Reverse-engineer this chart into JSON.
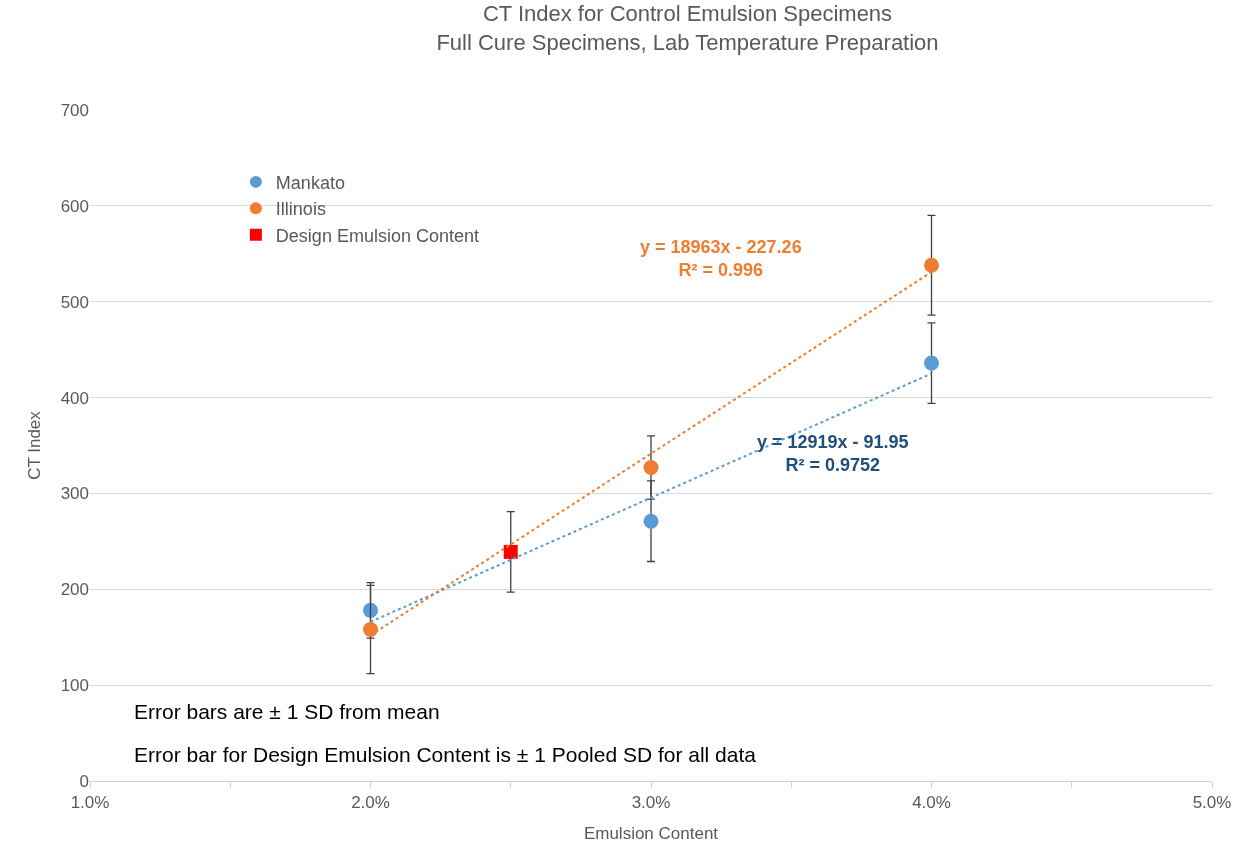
{
  "chart_data": {
    "type": "scatter",
    "title": "CT Index for Control Emulsion Specimens",
    "subtitle": "Full Cure Specimens, Lab Temperature Preparation",
    "xlabel": "Emulsion Content",
    "ylabel": "CT Index",
    "xlim": [
      0.01,
      0.05
    ],
    "xticks": [
      {
        "value": 0.01,
        "label": "1.0%"
      },
      {
        "value": 0.015,
        "label": null
      },
      {
        "value": 0.02,
        "label": "2.0%"
      },
      {
        "value": 0.025,
        "label": null
      },
      {
        "value": 0.03,
        "label": "3.0%"
      },
      {
        "value": 0.035,
        "label": null
      },
      {
        "value": 0.04,
        "label": "4.0%"
      },
      {
        "value": 0.045,
        "label": null
      },
      {
        "value": 0.05,
        "label": "5.0%"
      }
    ],
    "ylim": [
      0,
      700
    ],
    "yticks": [
      0,
      100,
      200,
      300,
      400,
      500,
      600,
      700
    ],
    "grid": "y",
    "legend": "top left",
    "series": [
      {
        "name": "Mankato",
        "color": "#5b9bd5",
        "marker": "circle",
        "x": [
          0.02,
          0.03,
          0.04
        ],
        "values": [
          178,
          271,
          436
        ],
        "errors": [
          29,
          42,
          42
        ]
      },
      {
        "name": "Illinois",
        "color": "#ed7d31",
        "marker": "circle",
        "x": [
          0.02,
          0.03,
          0.04
        ],
        "values": [
          158,
          327,
          538
        ],
        "errors": [
          46,
          33,
          52
        ]
      },
      {
        "name": "Design Emulsion Content",
        "color": "#ff0000",
        "marker": "square",
        "x": [
          0.025
        ],
        "values": [
          239
        ],
        "errors": [
          42
        ]
      },
      {
        "color": "#5b9bd5",
        "type": "line",
        "marker": "none",
        "line_style": "dotted",
        "x": [
          0.02,
          0.04
        ],
        "values": [
          166,
          425
        ]
      },
      {
        "color": "#ed7d31",
        "type": "line",
        "marker": "none",
        "line_style": "dotted",
        "x": [
          0.02,
          0.04
        ],
        "values": [
          152,
          531
        ]
      }
    ],
    "annotations": [
      "y = 18963x - 227.26\nR² = 0.996",
      "y = 12919x - 91.95\nR² = 0.9752",
      "Error bars are ± 1 SD from mean",
      "Error bar for Design Emulsion Content is ± 1 Pooled SD for all data"
    ]
  }
}
